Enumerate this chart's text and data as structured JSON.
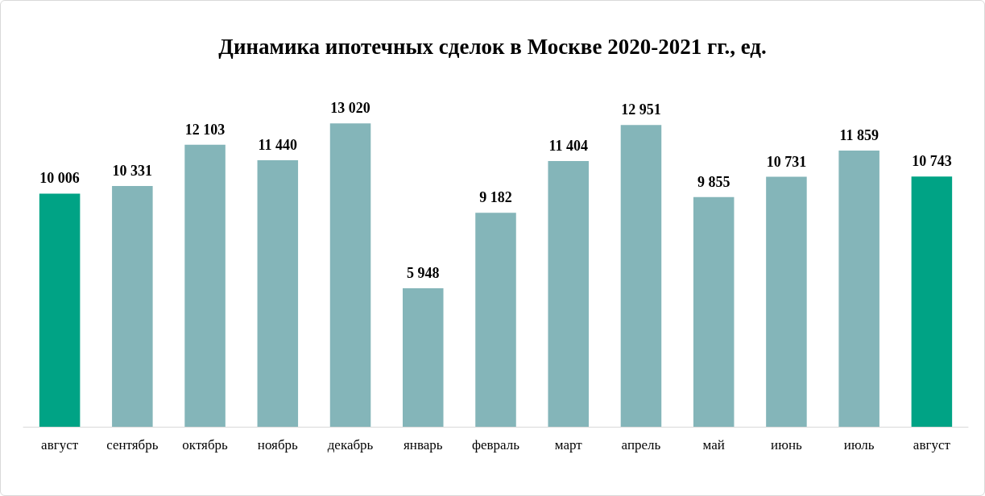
{
  "chart_data": {
    "type": "bar",
    "title": "Динамика ипотечных сделок в Москве 2020-2021 гг., ед.",
    "categories": [
      "август",
      "сентябрь",
      "октябрь",
      "ноябрь",
      "декабрь",
      "январь",
      "февраль",
      "март",
      "апрель",
      "май",
      "июнь",
      "июль",
      "август"
    ],
    "values": [
      10006,
      10331,
      12103,
      11440,
      13020,
      5948,
      9182,
      11404,
      12951,
      9855,
      10731,
      11859,
      10743
    ],
    "colors": [
      "#00a385",
      "#84b5b9",
      "#84b5b9",
      "#84b5b9",
      "#84b5b9",
      "#84b5b9",
      "#84b5b9",
      "#84b5b9",
      "#84b5b9",
      "#84b5b9",
      "#84b5b9",
      "#84b5b9",
      "#00a385"
    ],
    "value_labels": [
      "10 006",
      "10 331",
      "12 103",
      "11 440",
      "13 020",
      "5 948",
      "9 182",
      "11 404",
      "12 951",
      "9 855",
      "10 731",
      "11 859",
      "10 743"
    ]
  }
}
